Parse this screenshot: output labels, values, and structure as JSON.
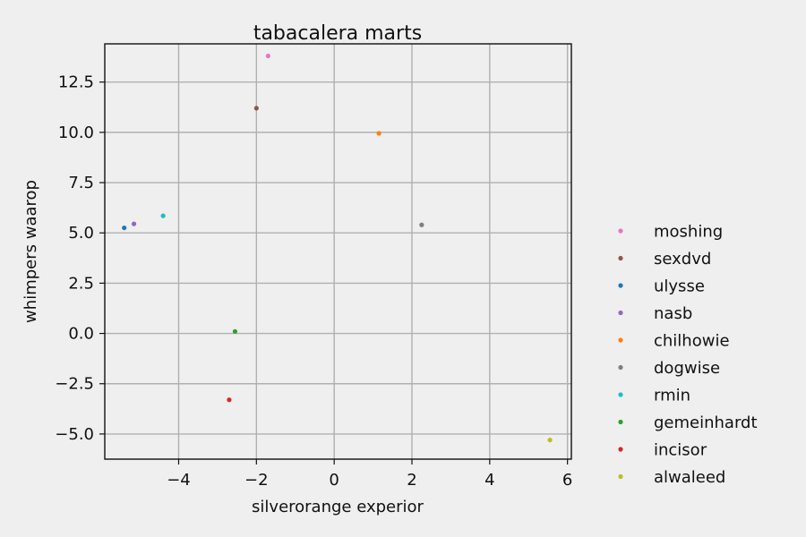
{
  "chart_data": {
    "type": "scatter",
    "title": "tabacalera marts",
    "xlabel": "silverorange experior",
    "ylabel": "whimpers waarop",
    "xlim": [
      -5.9,
      6.1
    ],
    "ylim": [
      -6.25,
      14.4
    ],
    "xticks": [
      -4,
      -2,
      0,
      2,
      4,
      6
    ],
    "xtick_labels": [
      "−4",
      "−2",
      "0",
      "2",
      "4",
      "6"
    ],
    "yticks": [
      -5.0,
      -2.5,
      0.0,
      2.5,
      5.0,
      7.5,
      10.0,
      12.5
    ],
    "ytick_labels": [
      "−5.0",
      "−2.5",
      "0.0",
      "2.5",
      "5.0",
      "7.5",
      "10.0",
      "12.5"
    ],
    "grid": true,
    "legend_position": "right",
    "series": [
      {
        "name": "moshing",
        "color": "#e377c2",
        "x": -1.7,
        "y": 13.8
      },
      {
        "name": "sexdvd",
        "color": "#8c564b",
        "x": -2.0,
        "y": 11.2
      },
      {
        "name": "ulysse",
        "color": "#1f77b4",
        "x": -5.4,
        "y": 5.25
      },
      {
        "name": "nasb",
        "color": "#9467bd",
        "x": -5.15,
        "y": 5.45
      },
      {
        "name": "chilhowie",
        "color": "#ff7f0e",
        "x": 1.15,
        "y": 9.95
      },
      {
        "name": "dogwise",
        "color": "#7f7f7f",
        "x": 2.25,
        "y": 5.4
      },
      {
        "name": "rmin",
        "color": "#17becf",
        "x": -4.4,
        "y": 5.85
      },
      {
        "name": "gemeinhardt",
        "color": "#2ca02c",
        "x": -2.55,
        "y": 0.1
      },
      {
        "name": "incisor",
        "color": "#d62728",
        "x": -2.7,
        "y": -3.3
      },
      {
        "name": "alwaleed",
        "color": "#bcbd22",
        "x": 5.55,
        "y": -5.3
      }
    ]
  }
}
